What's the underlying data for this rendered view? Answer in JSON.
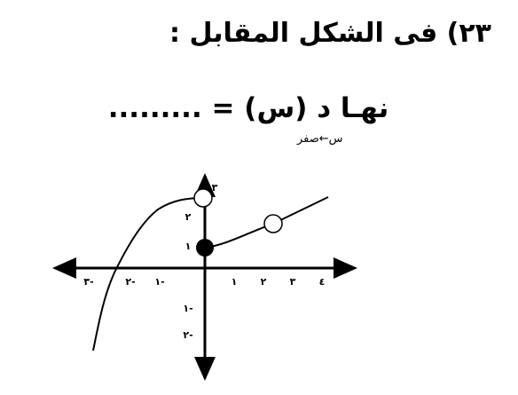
{
  "question": {
    "title": "٢٣)  فى الشكل المقابل :"
  },
  "limit": {
    "expression": "نهـا د (س) = .........",
    "subscript": "س←صفر"
  },
  "graph": {
    "x_labels": [
      "٣-",
      "٢-",
      "١-",
      "١",
      "٢",
      "٣",
      "٤"
    ],
    "y_labels": [
      "٣",
      "٢",
      "١",
      "١-",
      "٢-"
    ]
  }
}
